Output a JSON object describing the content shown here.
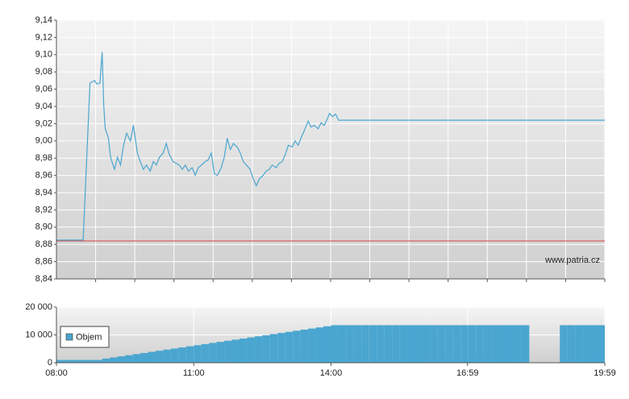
{
  "chart_data": [
    {
      "type": "line",
      "xlim": [
        "08:00",
        "19:59"
      ],
      "ylim": [
        8.84,
        9.14
      ],
      "yticks": [
        {
          "value": 8.84,
          "label": "8,84"
        },
        {
          "value": 8.86,
          "label": "8,86"
        },
        {
          "value": 8.88,
          "label": "8,88"
        },
        {
          "value": 8.9,
          "label": "8,90"
        },
        {
          "value": 8.92,
          "label": "8,92"
        },
        {
          "value": 8.94,
          "label": "8,94"
        },
        {
          "value": 8.96,
          "label": "8,96"
        },
        {
          "value": 8.98,
          "label": "8,98"
        },
        {
          "value": 9.0,
          "label": "9,00"
        },
        {
          "value": 9.02,
          "label": "9,02"
        },
        {
          "value": 9.04,
          "label": "9,04"
        },
        {
          "value": 9.06,
          "label": "9,06"
        },
        {
          "value": 9.08,
          "label": "9,08"
        },
        {
          "value": 9.1,
          "label": "9,10"
        },
        {
          "value": 9.12,
          "label": "9,12"
        },
        {
          "value": 9.14,
          "label": "9,14"
        }
      ],
      "grid": true,
      "watermark": "www.patria.cz",
      "reference_line": {
        "value": 8.884,
        "color": "#d9534f"
      },
      "x": [
        "08:00",
        "08:35",
        "08:44",
        "08:50",
        "08:53",
        "08:57",
        "09:00",
        "09:02",
        "09:04",
        "09:08",
        "09:11",
        "09:16",
        "09:20",
        "09:24",
        "09:28",
        "09:32",
        "09:37",
        "09:41",
        "09:46",
        "09:50",
        "09:54",
        "09:58",
        "10:03",
        "10:07",
        "10:11",
        "10:15",
        "10:20",
        "10:24",
        "10:28",
        "10:33",
        "10:37",
        "10:41",
        "10:45",
        "10:49",
        "10:53",
        "10:58",
        "11:02",
        "11:06",
        "11:10",
        "11:15",
        "11:19",
        "11:23",
        "11:27",
        "11:31",
        "11:36",
        "11:40",
        "11:44",
        "11:48",
        "11:52",
        "11:57",
        "12:01",
        "12:05",
        "12:09",
        "12:14",
        "12:18",
        "12:22",
        "12:26",
        "12:31",
        "12:35",
        "12:39",
        "12:43",
        "12:48",
        "12:52",
        "12:56",
        "13:00",
        "13:04",
        "13:09",
        "13:13",
        "13:17",
        "13:21",
        "13:26",
        "13:30",
        "13:34",
        "13:38",
        "13:43",
        "13:47",
        "13:51",
        "13:55",
        "13:58",
        "14:02",
        "14:06",
        "14:10",
        "19:59"
      ],
      "series": [
        {
          "color": "#4aa6d0",
          "values": [
            8.885,
            8.885,
            9.067,
            9.07,
            9.066,
            9.067,
            9.103,
            9.042,
            9.014,
            9.004,
            8.981,
            8.967,
            8.981,
            8.972,
            8.995,
            9.009,
            9.0,
            9.018,
            8.986,
            8.976,
            8.967,
            8.972,
            8.965,
            8.976,
            8.972,
            8.981,
            8.986,
            8.997,
            8.984,
            8.976,
            8.974,
            8.972,
            8.967,
            8.972,
            8.965,
            8.969,
            8.96,
            8.969,
            8.972,
            8.976,
            8.978,
            8.986,
            8.962,
            8.96,
            8.969,
            8.981,
            9.003,
            8.99,
            8.997,
            8.993,
            8.986,
            8.976,
            8.972,
            8.967,
            8.956,
            8.948,
            8.956,
            8.96,
            8.965,
            8.967,
            8.972,
            8.969,
            8.974,
            8.976,
            8.984,
            8.995,
            8.993,
            9.0,
            8.995,
            9.004,
            9.014,
            9.023,
            9.016,
            9.018,
            9.014,
            9.021,
            9.018,
            9.025,
            9.032,
            9.028,
            9.031,
            9.024,
            9.024
          ]
        }
      ]
    },
    {
      "type": "bar",
      "xlim": [
        "08:00",
        "19:59"
      ],
      "xticks": [
        "08:00",
        "11:00",
        "14:00",
        "16:59",
        "19:59"
      ],
      "ylim": [
        0,
        20000
      ],
      "yticks": [
        0,
        {
          "value": 10000,
          "label": "10 000"
        },
        {
          "value": 20000,
          "label": "20 000"
        }
      ],
      "grid": true,
      "legend": "upper-left",
      "x": [
        "08:00",
        "08:10",
        "08:20",
        "08:30",
        "08:40",
        "08:50",
        "09:00",
        "09:10",
        "09:20",
        "09:30",
        "09:40",
        "09:50",
        "10:00",
        "10:10",
        "10:20",
        "10:30",
        "10:40",
        "10:50",
        "11:00",
        "11:10",
        "11:20",
        "11:30",
        "11:40",
        "11:50",
        "12:00",
        "12:10",
        "12:20",
        "12:30",
        "12:40",
        "12:50",
        "13:00",
        "13:10",
        "13:20",
        "13:30",
        "13:40",
        "13:50",
        "14:00",
        "14:10",
        "14:20",
        "14:30",
        "14:40",
        "14:50",
        "15:00",
        "15:10",
        "15:20",
        "15:30",
        "15:40",
        "15:50",
        "16:00",
        "16:10",
        "16:20",
        "16:30",
        "16:40",
        "16:50",
        "17:00",
        "17:10",
        "17:20",
        "17:30",
        "17:40",
        "17:50",
        "18:00",
        "18:10",
        "19:00",
        "19:10",
        "19:20",
        "19:30",
        "19:40",
        "19:50"
      ],
      "series": [
        {
          "name": "Objem",
          "color": "#4aa6d0",
          "values": [
            1000,
            1000,
            1000,
            1000,
            1000,
            1000,
            1500,
            1900,
            2300,
            2700,
            3100,
            3500,
            3900,
            4300,
            4700,
            5100,
            5500,
            5900,
            6300,
            6700,
            7100,
            7500,
            7900,
            8300,
            8700,
            9100,
            9500,
            9900,
            10300,
            10700,
            11100,
            11500,
            11900,
            12300,
            12700,
            13100,
            13500,
            13500,
            13500,
            13500,
            13500,
            13500,
            13500,
            13500,
            13500,
            13500,
            13500,
            13500,
            13500,
            13500,
            13500,
            13500,
            13500,
            13500,
            13500,
            13500,
            13500,
            13500,
            13500,
            13500,
            13500,
            13500,
            13500,
            13500,
            13500,
            13500,
            13500,
            13500
          ]
        }
      ]
    }
  ]
}
